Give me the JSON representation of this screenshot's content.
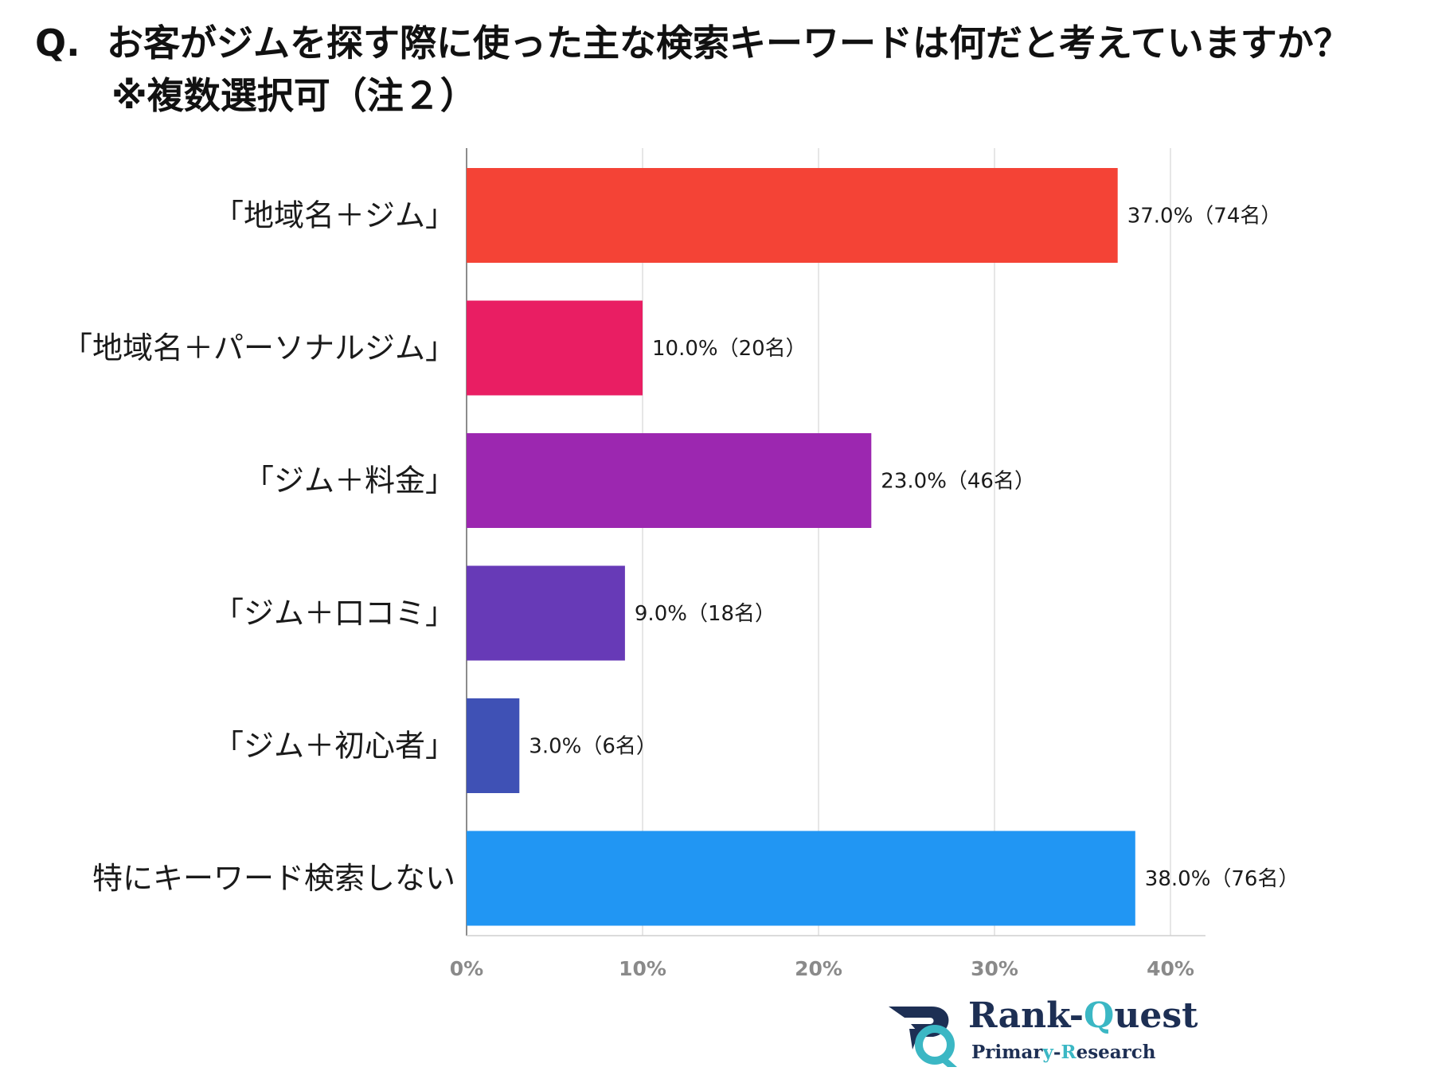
{
  "header": {
    "question_mark": "Q.",
    "question": "お客がジムを探す際に使った主な検索キーワードは何だと考えていますか？",
    "note": "※複数選択可（注２）"
  },
  "chart_data": {
    "type": "bar",
    "orientation": "horizontal",
    "title": "お客がジムを探す際に使った主な検索キーワードは何だと考えていますか？",
    "categories": [
      "「地域名＋ジム」",
      "「地域名＋パーソナルジム」",
      "「ジム＋料金」",
      "「ジム＋口コミ」",
      "「ジム＋初心者」",
      "特にキーワード検索しない"
    ],
    "values": [
      37.0,
      10.0,
      23.0,
      9.0,
      3.0,
      38.0
    ],
    "value_labels": [
      "37.0%（74名）",
      "10.0%（20名）",
      "23.0%（46名）",
      "9.0%（18名）",
      "3.0%（6名）",
      "38.0%（76名）"
    ],
    "colors": [
      "#f44336",
      "#e91e63",
      "#9c27b0",
      "#673ab7",
      "#3f51b5",
      "#2196f3"
    ],
    "xlim": [
      0,
      40
    ],
    "xticks": [
      0,
      10,
      20,
      30,
      40
    ],
    "xtick_labels": [
      "0%",
      "10%",
      "20%",
      "30%",
      "40%"
    ],
    "xlabel": "",
    "ylabel": "",
    "grid": true,
    "legend": "none"
  },
  "logo": {
    "name_main": "Rank-",
    "name_accent_q": "Q",
    "name_rest": "uest",
    "sub_main_1": "Primar",
    "sub_accent_y": "y",
    "sub_dash": "-",
    "sub_accent_r": "R",
    "sub_rest": "esearch",
    "colors": {
      "navy": "#1d2f54",
      "teal": "#3bb7c4"
    }
  }
}
